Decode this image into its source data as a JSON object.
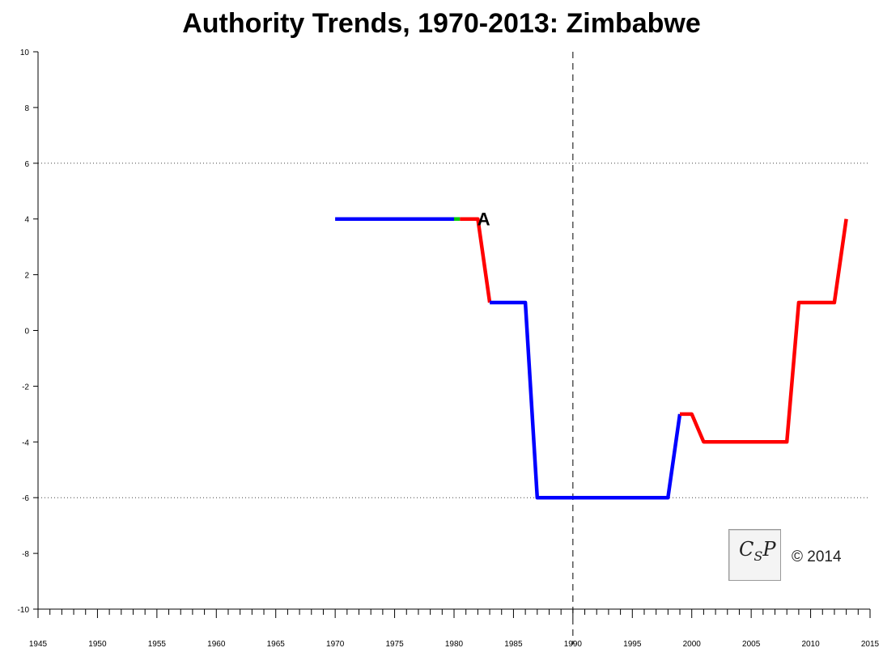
{
  "chart_data": {
    "type": "line",
    "title": "Authority Trends, 1970-2013: Zimbabwe",
    "xlabel": "",
    "ylabel": "",
    "xlim": [
      1945,
      2015
    ],
    "ylim": [
      -10,
      10
    ],
    "x_ticks": [
      1945,
      1950,
      1955,
      1960,
      1965,
      1970,
      1975,
      1980,
      1985,
      1990,
      1995,
      2000,
      2005,
      2010,
      2015
    ],
    "y_ticks": [
      -10,
      -8,
      -6,
      -4,
      -2,
      0,
      2,
      4,
      6,
      8,
      10
    ],
    "reference_lines": [
      {
        "axis": "y",
        "value": 6,
        "style": "dotted"
      },
      {
        "axis": "y",
        "value": -6,
        "style": "dotted"
      },
      {
        "axis": "x",
        "value": 1990,
        "style": "dashed"
      }
    ],
    "series": [
      {
        "color": "#0000ff",
        "points": [
          [
            1970,
            4
          ],
          [
            1980,
            4
          ]
        ]
      },
      {
        "color": "#00cc00",
        "points": [
          [
            1980,
            4
          ],
          [
            1980.5,
            4
          ]
        ]
      },
      {
        "color": "#ff0000",
        "points": [
          [
            1980.5,
            4
          ],
          [
            1982,
            4
          ],
          [
            1983,
            1
          ]
        ]
      },
      {
        "color": "#0000ff",
        "points": [
          [
            1983,
            1
          ],
          [
            1986,
            1
          ],
          [
            1987,
            -6
          ],
          [
            1998,
            -6
          ],
          [
            1999,
            -3
          ]
        ]
      },
      {
        "color": "#ff0000",
        "points": [
          [
            1999,
            -3
          ],
          [
            2000,
            -3
          ],
          [
            2001,
            -4
          ],
          [
            2008,
            -4
          ],
          [
            2009,
            1
          ],
          [
            2012,
            1
          ],
          [
            2013,
            4
          ]
        ]
      }
    ],
    "annotations": [
      {
        "text": "A",
        "x": 1982.5,
        "y": 4
      }
    ]
  },
  "logo": {
    "text": "CSP",
    "copyright": "© 2014"
  }
}
